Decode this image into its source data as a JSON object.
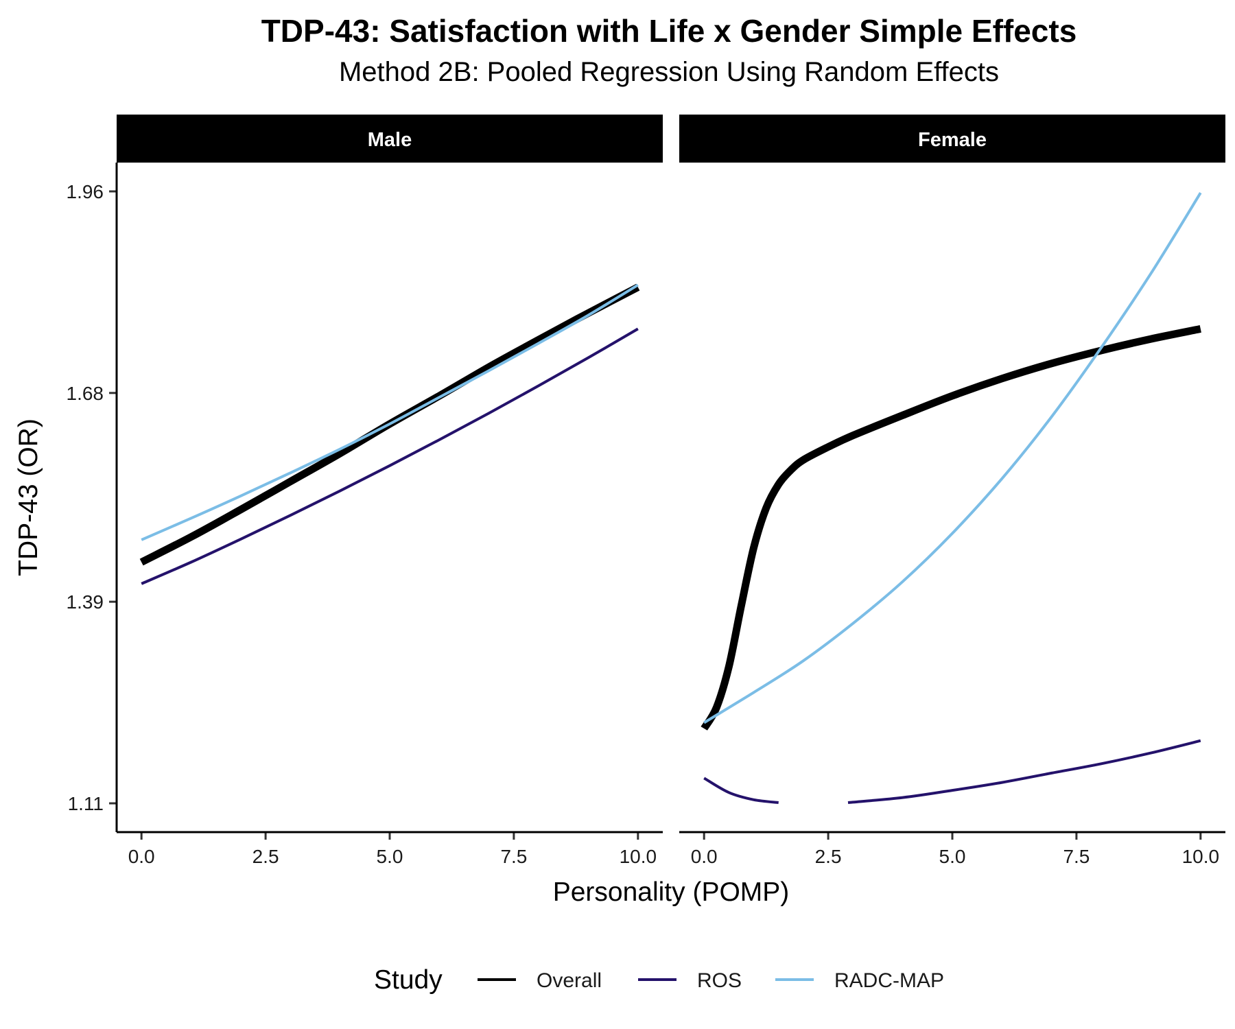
{
  "chart_data": {
    "type": "line",
    "title": "TDP-43: Satisfaction with Life x Gender Simple Effects",
    "subtitle": "Method 2B: Pooled Regression Using Random Effects",
    "xlabel": "Personality (POMP)",
    "ylabel": "TDP-43 (OR)",
    "xlim": [
      -0.5,
      10.5
    ],
    "ylim": [
      1.07,
      2.0
    ],
    "x_ticks": [
      0.0,
      2.5,
      5.0,
      7.5,
      10.0
    ],
    "x_tick_labels": [
      "0.0",
      "2.5",
      "5.0",
      "7.5",
      "10.0"
    ],
    "y_ticks": [
      1.11,
      1.39,
      1.68,
      1.96
    ],
    "y_tick_labels": [
      "1.11",
      "1.39",
      "1.68",
      "1.96"
    ],
    "grid": false,
    "legend_title": "Study",
    "legend_position": "bottom",
    "series_styles": [
      {
        "name": "Overall",
        "color": "#000000",
        "width": 11
      },
      {
        "name": "ROS",
        "color": "#24126b",
        "width": 4
      },
      {
        "name": "RADC-MAP",
        "color": "#7bbde6",
        "width": 4
      }
    ],
    "panels": [
      {
        "label": "Male",
        "series": [
          {
            "name": "Overall",
            "x": [
              0,
              1,
              2,
              3,
              4,
              5,
              6,
              7,
              8,
              9,
              10
            ],
            "y": [
              1.445,
              1.48,
              1.518,
              1.557,
              1.596,
              1.637,
              1.676,
              1.716,
              1.754,
              1.791,
              1.827
            ]
          },
          {
            "name": "ROS",
            "x": [
              0,
              1,
              2,
              3,
              4,
              5,
              6,
              7,
              8,
              9,
              10
            ],
            "y": [
              1.415,
              1.445,
              1.477,
              1.51,
              1.544,
              1.579,
              1.615,
              1.652,
              1.69,
              1.729,
              1.769
            ]
          },
          {
            "name": "RADC-MAP",
            "x": [
              0,
              1,
              2,
              3,
              4,
              5,
              6,
              7,
              8,
              9,
              10
            ],
            "y": [
              1.476,
              1.506,
              1.537,
              1.569,
              1.602,
              1.637,
              1.674,
              1.711,
              1.749,
              1.788,
              1.83
            ]
          }
        ]
      },
      {
        "label": "Female",
        "series": [
          {
            "name": "Overall",
            "x": [
              0,
              0.25,
              0.5,
              0.75,
              1.0,
              1.25,
              1.5,
              1.75,
              2.0,
              2.5,
              3,
              4,
              5,
              6,
              7,
              8,
              9,
              10
            ],
            "y": [
              1.214,
              1.243,
              1.3,
              1.385,
              1.465,
              1.52,
              1.553,
              1.573,
              1.587,
              1.605,
              1.621,
              1.649,
              1.676,
              1.7,
              1.721,
              1.739,
              1.755,
              1.769
            ]
          },
          {
            "name": "ROS",
            "x": [
              0,
              0.5,
              1.0,
              1.5
            ],
            "y": [
              1.145,
              1.125,
              1.115,
              1.111
            ]
          },
          {
            "name": "ROS",
            "x": [
              2.9,
              4,
              5,
              6,
              7,
              8,
              9,
              10
            ],
            "y": [
              1.111,
              1.118,
              1.128,
              1.139,
              1.152,
              1.165,
              1.18,
              1.197
            ]
          },
          {
            "name": "RADC-MAP",
            "x": [
              0,
              1,
              2,
              3,
              4,
              5,
              6,
              7,
              8,
              9,
              10
            ],
            "y": [
              1.222,
              1.264,
              1.308,
              1.36,
              1.418,
              1.485,
              1.561,
              1.647,
              1.743,
              1.846,
              1.958
            ]
          }
        ]
      }
    ]
  }
}
